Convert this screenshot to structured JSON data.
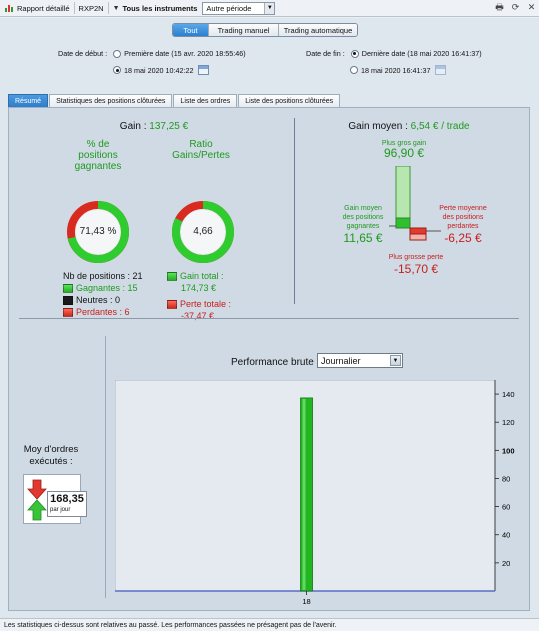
{
  "toolbar": {
    "report_label": "Rapport détaillé",
    "account": "RXP2N",
    "instruments": "Tous les instruments",
    "period": "Autre période"
  },
  "mode_buttons": [
    "Tout",
    "Trading manuel",
    "Trading automatique"
  ],
  "dates": {
    "start_label": "Date de début :",
    "start_opt1": "Première date (15 avr. 2020 18:55:46)",
    "start_opt2": "18 mai 2020 10:42:22",
    "end_label": "Date de fin :",
    "end_opt1": "Dernière date (18 mai 2020 16:41:37)",
    "end_opt2": "18 mai 2020 16:41:37"
  },
  "tabs": [
    "Résumé",
    "Statistiques des positions clôturées",
    "Liste des ordres",
    "Liste des positions clôturées"
  ],
  "summary": {
    "gain_label": "Gain :",
    "gain_value": "137,25 €",
    "pct_title_1": "% de",
    "pct_title_2": "positions",
    "pct_title_3": "gagnantes",
    "pct_value": "71,43 %",
    "pct_fraction": 0.7143,
    "ratio_title_1": "Ratio",
    "ratio_title_2": "Gains/Pertes",
    "ratio_value": "4,66",
    "ratio_fraction": 0.8233,
    "nb_positions": "Nb de positions : 21",
    "gagnantes": "Gagnantes : 15",
    "neutres": "Neutres : 0",
    "perdantes": "Perdantes : 6",
    "gain_total_label": "Gain total :",
    "gain_total_value": "174,73 €",
    "perte_totale_label": "Perte totale :",
    "perte_totale_value": "-37,47 €"
  },
  "gain_moyen": {
    "title": "Gain moyen :",
    "value": "6,54 € / trade",
    "plus_gros_gain_label": "Plus gros gain",
    "plus_gros_gain_value": "96,90 €",
    "gain_moyen_pos_1": "Gain moyen",
    "gain_moyen_pos_2": "des positions",
    "gain_moyen_pos_3": "gagnantes",
    "gain_moyen_pos_value": "11,65 €",
    "perte_moyenne_1": "Perte moyenne",
    "perte_moyenne_2": "des positions",
    "perte_moyenne_3": "perdantes",
    "perte_moyenne_value": "-6,25 €",
    "plus_grosse_perte_label": "Plus grosse perte",
    "plus_grosse_perte_value": "-15,70 €"
  },
  "orders": {
    "label_1": "Moy d'ordres",
    "label_2": "exécutés :",
    "value": "168,35",
    "unit": "par jour"
  },
  "performance": {
    "title": "Performance brute",
    "granularity": "Journalier"
  },
  "chart_data": {
    "type": "bar",
    "categories": [
      "18"
    ],
    "values": [
      137.25
    ],
    "ylim": [
      0,
      150
    ],
    "yticks": [
      20,
      40,
      60,
      80,
      100,
      120,
      140
    ],
    "grid": false,
    "colors": {
      "bar": "#22b522",
      "axis": "#5b6cc7"
    }
  },
  "status": "Les statistiques ci-dessus sont relatives au passé. Les performances passées ne présagent pas de l'avenir."
}
